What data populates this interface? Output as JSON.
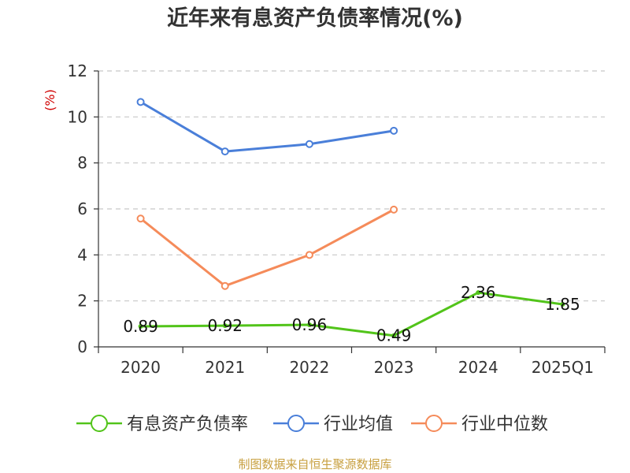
{
  "title": "近年来有息资产负债率情况(%)",
  "source": "制图数据来自恒生聚源数据库",
  "chart_data": {
    "type": "line",
    "title": "近年来有息资产负债率情况(%)",
    "xlabel": "",
    "ylabel": "(%)",
    "categories": [
      "2020",
      "2021",
      "2022",
      "2023",
      "2024",
      "2025Q1"
    ],
    "ylim": [
      0,
      12
    ],
    "yticks": [
      0,
      2,
      4,
      6,
      8,
      10,
      12
    ],
    "grid": true,
    "legend_position": "bottom",
    "series": [
      {
        "name": "有息资产负债率",
        "color": "#52c41a",
        "hollow_markers": false,
        "show_labels": true,
        "values": [
          0.89,
          0.92,
          0.96,
          0.49,
          2.36,
          1.85
        ]
      },
      {
        "name": "行业均值",
        "color": "#4a7fd9",
        "hollow_markers": true,
        "show_labels": false,
        "values": [
          10.65,
          8.5,
          8.82,
          9.4,
          null,
          null
        ]
      },
      {
        "name": "行业中位数",
        "color": "#f58b5a",
        "hollow_markers": true,
        "show_labels": false,
        "values": [
          5.58,
          2.65,
          4.0,
          5.97,
          null,
          null
        ]
      }
    ]
  }
}
